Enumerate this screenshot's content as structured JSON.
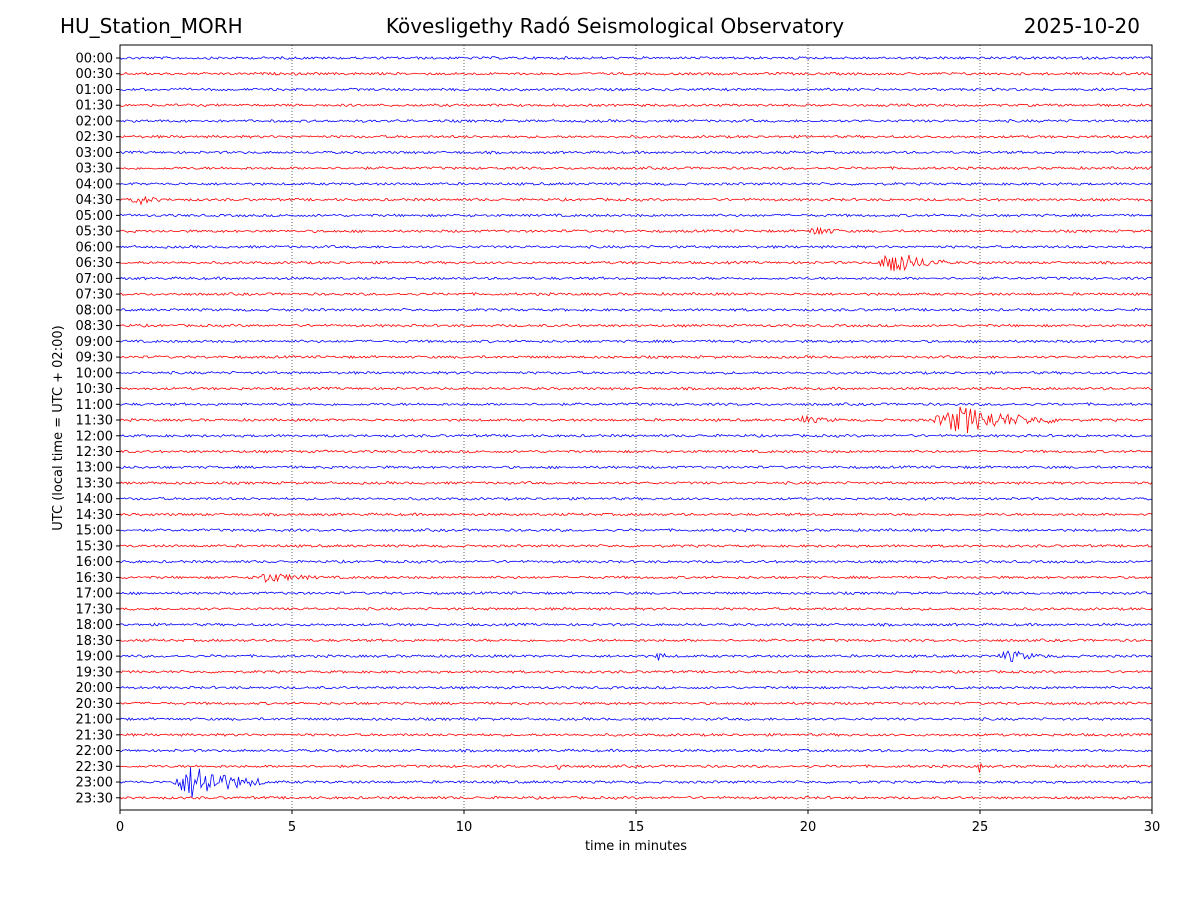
{
  "header": {
    "station": "HU_Station_MORH",
    "title": "Kövesligethy Radó Seismological Observatory",
    "date": "2025-10-20"
  },
  "chart_data": {
    "type": "line",
    "subtype": "helicorder",
    "xlabel": "time in minutes",
    "ylabel": "UTC (local time = UTC + 02:00)",
    "xlim": [
      0,
      30
    ],
    "xticks": [
      0,
      5,
      10,
      15,
      20,
      25,
      30
    ],
    "grid": "vertical dotted at x ticks",
    "colors": {
      "even": "#0000ff",
      "odd": "#ff0000"
    },
    "rows": [
      "00:00",
      "00:30",
      "01:00",
      "01:30",
      "02:00",
      "02:30",
      "03:00",
      "03:30",
      "04:00",
      "04:30",
      "05:00",
      "05:30",
      "06:00",
      "06:30",
      "07:00",
      "07:30",
      "08:00",
      "08:30",
      "09:00",
      "09:30",
      "10:00",
      "10:30",
      "11:00",
      "11:30",
      "12:00",
      "12:30",
      "13:00",
      "13:30",
      "14:00",
      "14:30",
      "15:00",
      "15:30",
      "16:00",
      "16:30",
      "17:00",
      "17:30",
      "18:00",
      "18:30",
      "19:00",
      "19:30",
      "20:00",
      "20:30",
      "21:00",
      "21:30",
      "22:00",
      "22:30",
      "23:00",
      "23:30"
    ],
    "events": [
      {
        "row": "04:30",
        "x_start": 0.3,
        "x_end": 1.3,
        "amplitude": 0.3
      },
      {
        "row": "05:30",
        "x_start": 20.0,
        "x_end": 21.0,
        "amplitude": 0.3
      },
      {
        "row": "06:30",
        "x_start": 22.0,
        "x_end": 24.0,
        "amplitude": 0.8
      },
      {
        "row": "11:30",
        "x_start": 19.5,
        "x_end": 21.0,
        "amplitude": 0.2
      },
      {
        "row": "11:30",
        "x_start": 23.5,
        "x_end": 27.5,
        "amplitude": 0.85
      },
      {
        "row": "16:30",
        "x_start": 3.8,
        "x_end": 5.8,
        "amplitude": 0.3
      },
      {
        "row": "19:00",
        "x_start": 15.6,
        "x_end": 15.9,
        "amplitude": 0.55
      },
      {
        "row": "19:00",
        "x_start": 25.5,
        "x_end": 27.0,
        "amplitude": 0.35
      },
      {
        "row": "22:30",
        "x_start": 12.6,
        "x_end": 13.1,
        "amplitude": 0.25
      },
      {
        "row": "22:30",
        "x_start": 24.95,
        "x_end": 25.05,
        "amplitude": 0.5
      },
      {
        "row": "23:00",
        "x_start": 1.5,
        "x_end": 4.2,
        "amplitude": 1.2
      }
    ]
  }
}
